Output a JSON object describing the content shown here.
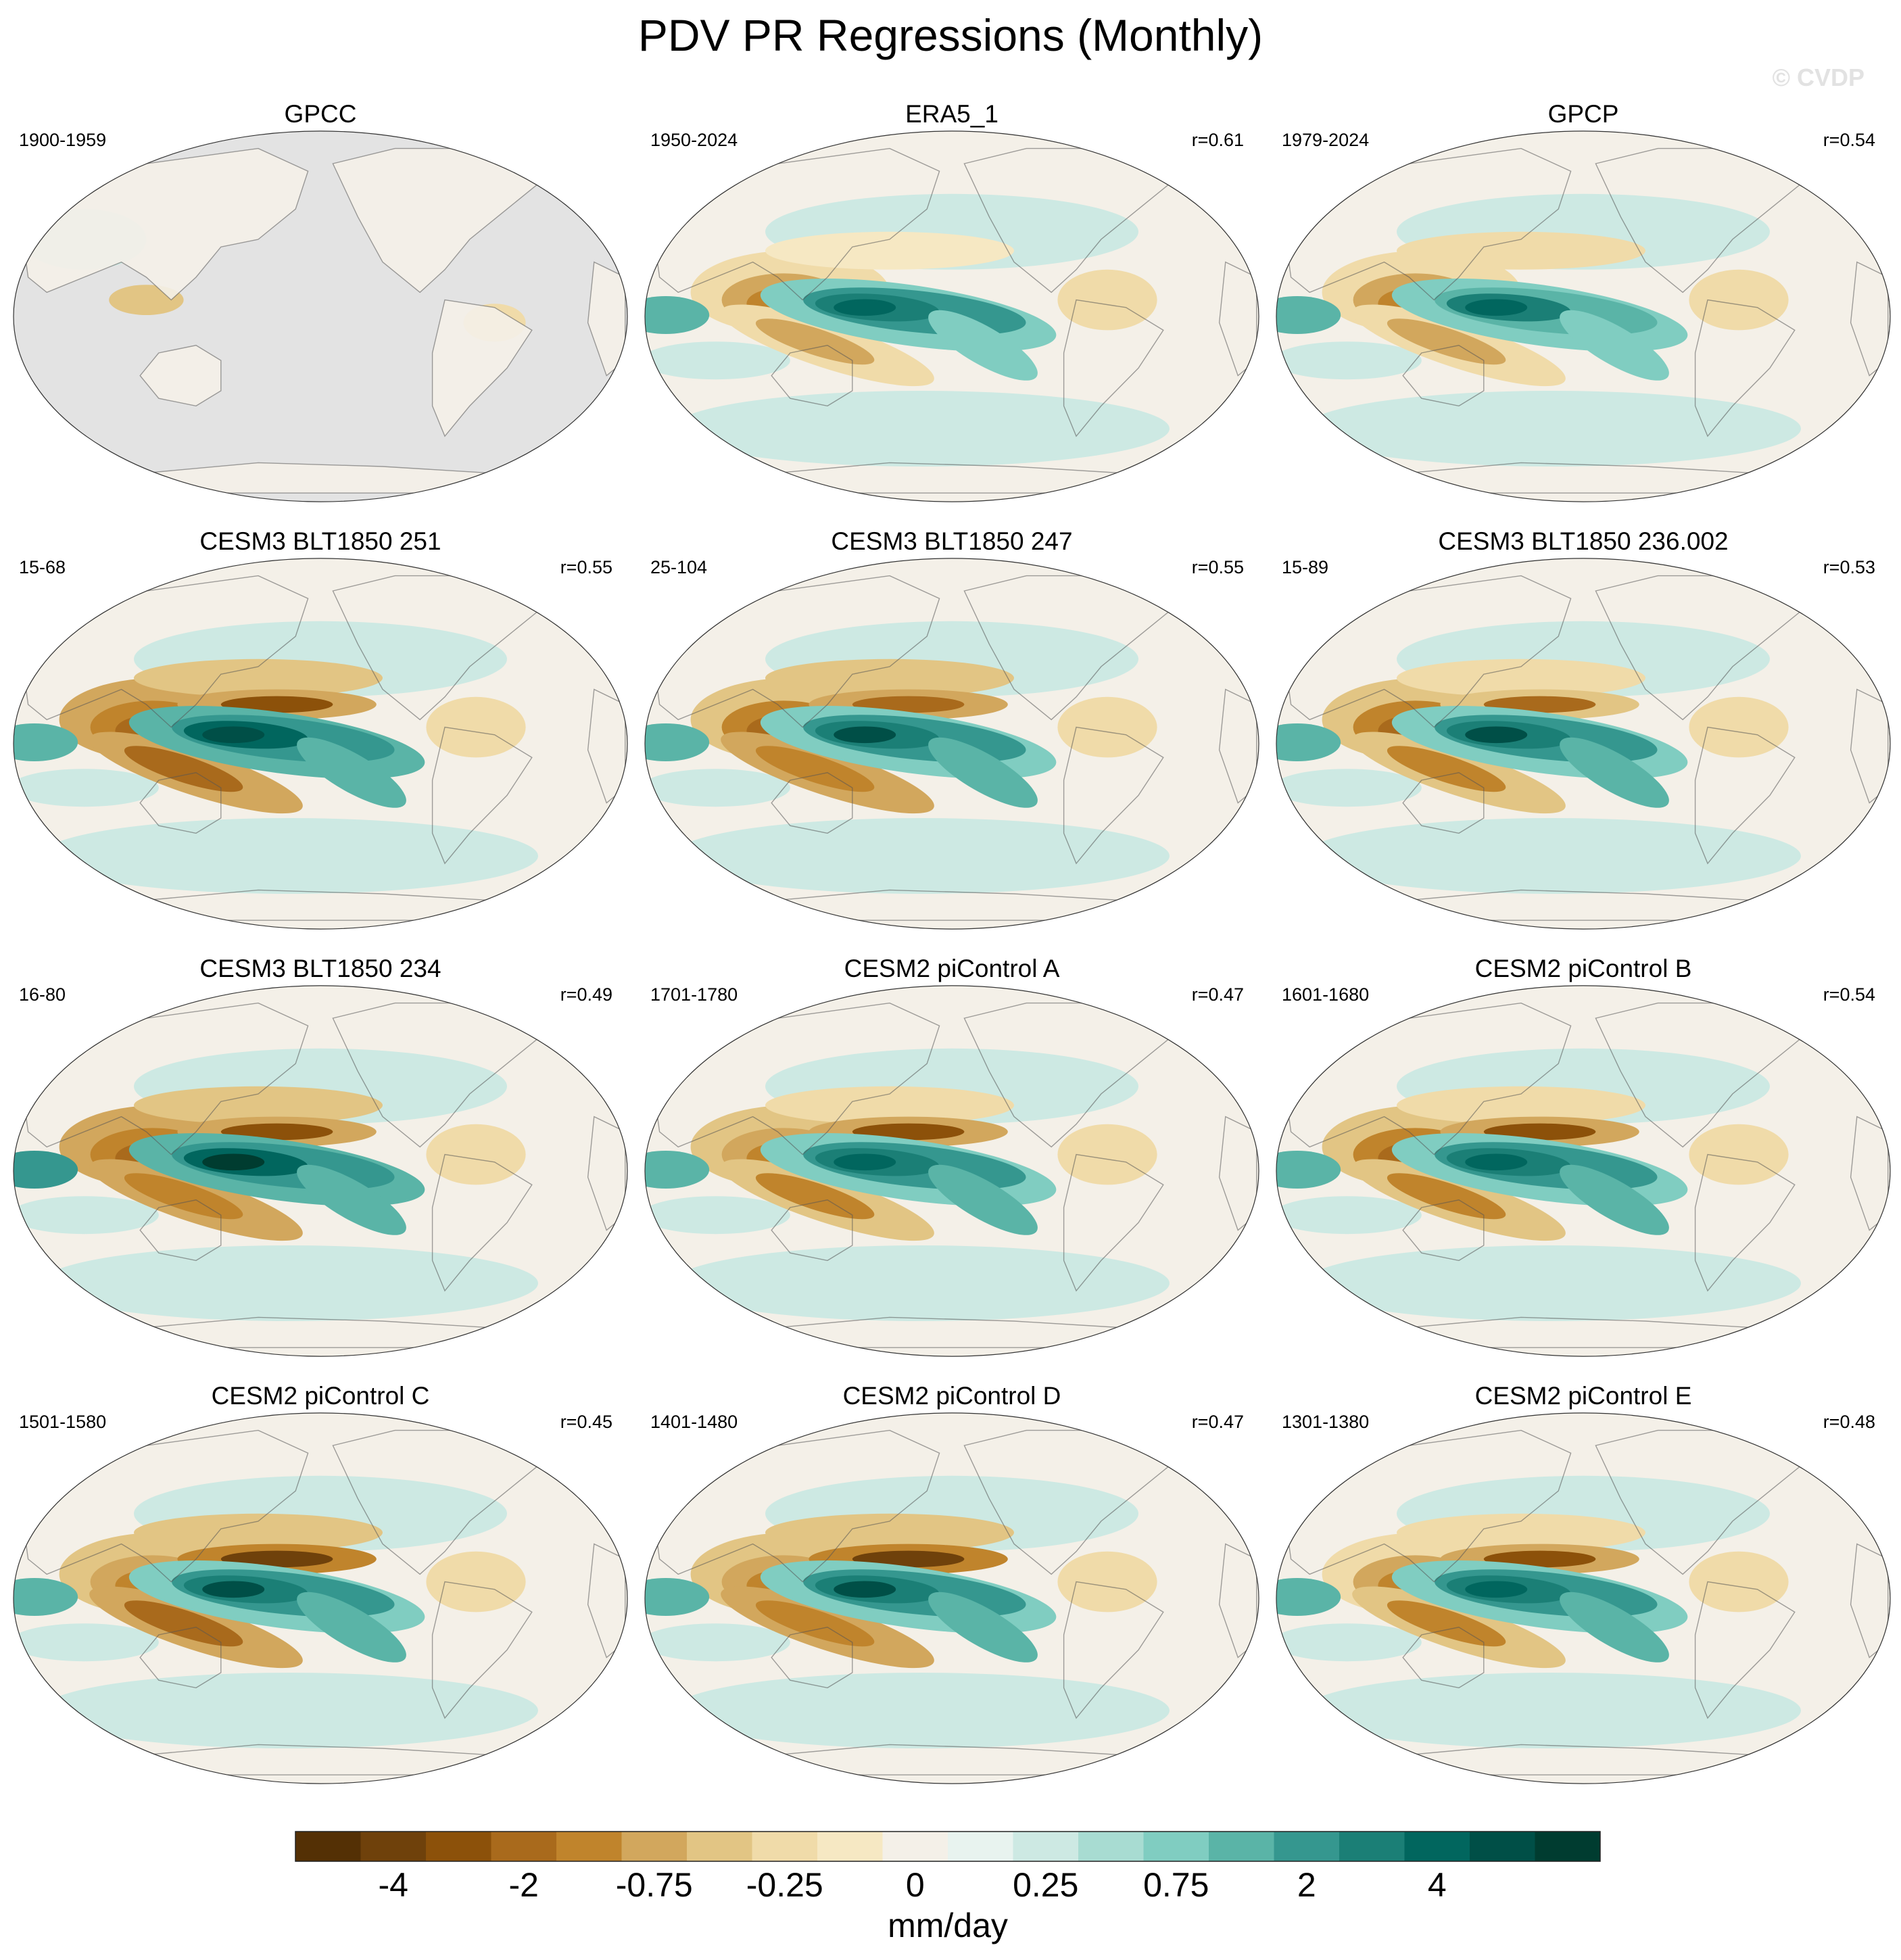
{
  "chart_data": {
    "type": "heatmap",
    "title": "PDV PR Regressions (Monthly)",
    "watermark": "© CVDP",
    "projection": "Robinson, Pacific-centered",
    "panels": [
      {
        "name": "GPCC",
        "period": "1900-1959",
        "r": "",
        "land_only": true,
        "warm_pool_dry": 0.3,
        "equatorial_wet": 0.2,
        "offequator_dry": 0.2,
        "east_pacific_dry": 0.0
      },
      {
        "name": "ERA5_1",
        "period": "1950-2024",
        "r": "r=0.61",
        "land_only": false,
        "warm_pool_dry": 1.0,
        "equatorial_wet": 1.6,
        "offequator_dry": 0.6,
        "east_pacific_dry": 0.0
      },
      {
        "name": "GPCP",
        "period": "1979-2024",
        "r": "r=0.54",
        "land_only": false,
        "warm_pool_dry": 1.1,
        "equatorial_wet": 1.5,
        "offequator_dry": 0.7,
        "east_pacific_dry": 0.0
      },
      {
        "name": "CESM3 BLT1850 251",
        "period": "15-68",
        "r": "r=0.55",
        "land_only": false,
        "warm_pool_dry": 1.8,
        "equatorial_wet": 2.2,
        "offequator_dry": 1.6,
        "east_pacific_dry": 2.2
      },
      {
        "name": "CESM3 BLT1850 247",
        "period": "25-104",
        "r": "r=0.55",
        "land_only": false,
        "warm_pool_dry": 1.5,
        "equatorial_wet": 2.0,
        "offequator_dry": 1.4,
        "east_pacific_dry": 1.6
      },
      {
        "name": "CESM3 BLT1850 236.002",
        "period": "15-89",
        "r": "r=0.53",
        "land_only": false,
        "warm_pool_dry": 1.4,
        "equatorial_wet": 1.9,
        "offequator_dry": 1.2,
        "east_pacific_dry": 1.4
      },
      {
        "name": "CESM3 BLT1850 234",
        "period": "16-80",
        "r": "r=0.49",
        "land_only": false,
        "warm_pool_dry": 1.8,
        "equatorial_wet": 2.3,
        "offequator_dry": 1.4,
        "east_pacific_dry": 2.0
      },
      {
        "name": "CESM2 piControl A",
        "period": "1701-1780",
        "r": "r=0.47",
        "land_only": false,
        "warm_pool_dry": 1.2,
        "equatorial_wet": 1.8,
        "offequator_dry": 1.1,
        "east_pacific_dry": 2.4
      },
      {
        "name": "CESM2 piControl B",
        "period": "1601-1680",
        "r": "r=0.54",
        "land_only": false,
        "warm_pool_dry": 1.4,
        "equatorial_wet": 1.8,
        "offequator_dry": 1.2,
        "east_pacific_dry": 2.4
      },
      {
        "name": "CESM2 piControl C",
        "period": "1501-1580",
        "r": "r=0.45",
        "land_only": false,
        "warm_pool_dry": 1.2,
        "equatorial_wet": 1.9,
        "offequator_dry": 1.6,
        "east_pacific_dry": 2.5
      },
      {
        "name": "CESM2 piControl D",
        "period": "1401-1480",
        "r": "r=0.47",
        "land_only": false,
        "warm_pool_dry": 1.2,
        "equatorial_wet": 1.9,
        "offequator_dry": 1.4,
        "east_pacific_dry": 2.5
      },
      {
        "name": "CESM2 piControl E",
        "period": "1301-1380",
        "r": "r=0.48",
        "land_only": false,
        "warm_pool_dry": 1.1,
        "equatorial_wet": 1.8,
        "offequator_dry": 1.2,
        "east_pacific_dry": 2.4
      }
    ],
    "colorbar": {
      "label": "mm/day",
      "tick_labels": [
        "-4",
        "-2",
        "-0.75",
        "-0.25",
        "0",
        "0.25",
        "0.75",
        "2",
        "4"
      ],
      "tick_boundaries": [
        1,
        3,
        5,
        7,
        9,
        11,
        13,
        15,
        17
      ],
      "colors": [
        "#543005",
        "#6f410b",
        "#8c510a",
        "#a96a1c",
        "#c0842c",
        "#d2a75d",
        "#e2c584",
        "#f0dba9",
        "#f6e8c3",
        "#f4f0e8",
        "#e8f3ef",
        "#cde9e3",
        "#a8dcd2",
        "#80cdc1",
        "#5ab4a7",
        "#35978f",
        "#1b7f76",
        "#01665e",
        "#004f47",
        "#003c30"
      ]
    }
  }
}
